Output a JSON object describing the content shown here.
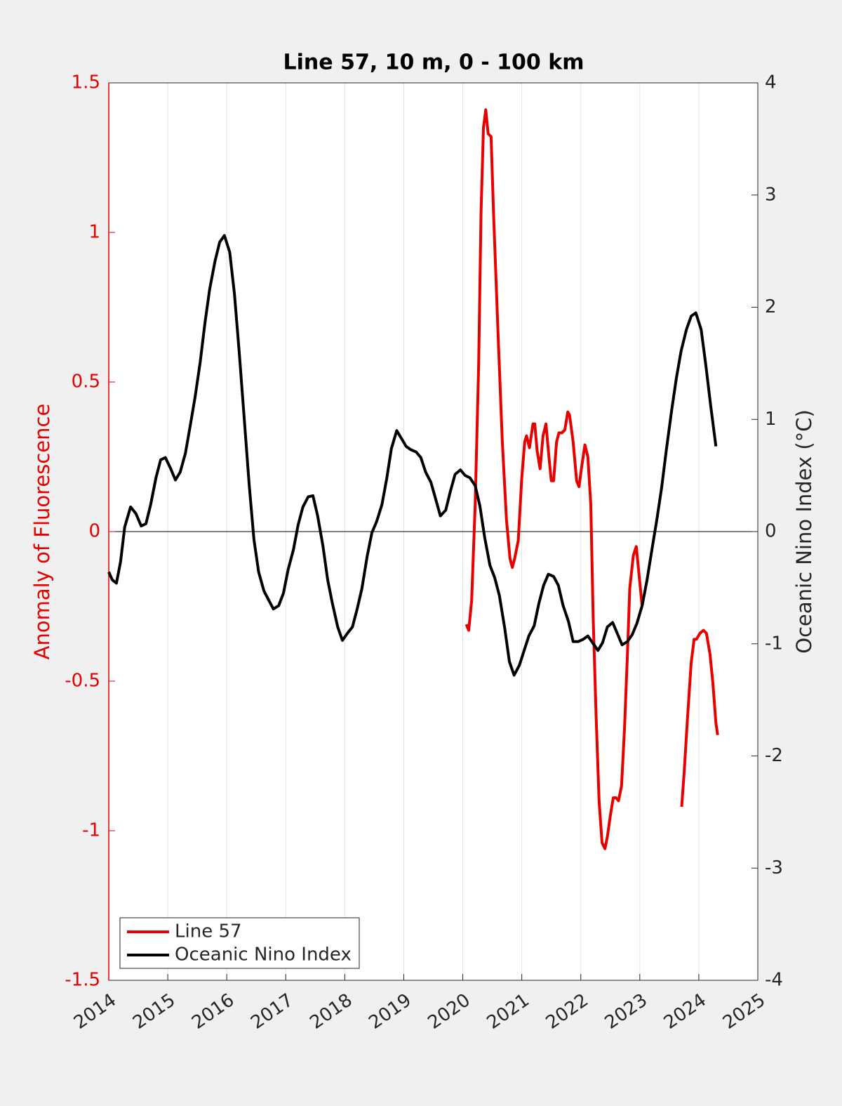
{
  "chart_data": {
    "type": "line",
    "title": "Line 57, 10 m, 0 - 100 km",
    "ylabel": "Anomaly of Fluorescence",
    "y2label": "Oceanic Nino Index (°C)",
    "xlim": [
      2014,
      2025
    ],
    "xticks": [
      2014,
      2015,
      2016,
      2017,
      2018,
      2019,
      2020,
      2021,
      2022,
      2023,
      2024,
      2025
    ],
    "ylim": [
      -1.5,
      1.5
    ],
    "yticks": [
      1.5,
      1,
      0.5,
      0,
      -0.5,
      -1,
      -1.5
    ],
    "y2lim": [
      -4,
      4
    ],
    "y2ticks": [
      4,
      3,
      2,
      1,
      0,
      -1,
      -2,
      -3,
      -4
    ],
    "grid": true,
    "legend": "lower left",
    "series": [
      {
        "name": "Line 57",
        "color": "#e60000",
        "x": [
          2020.06,
          2020.1,
          2020.15,
          2020.21,
          2020.27,
          2020.31,
          2020.35,
          2020.39,
          2020.43,
          2020.48,
          2020.52,
          2020.6,
          2020.67,
          2020.74,
          2020.8,
          2020.84,
          2020.88,
          2020.94,
          2021.0,
          2021.05,
          2021.08,
          2021.13,
          2021.19,
          2021.22,
          2021.26,
          2021.31,
          2021.36,
          2021.41,
          2021.46,
          2021.5,
          2021.54,
          2021.59,
          2021.63,
          2021.68,
          2021.73,
          2021.78,
          2021.81,
          2021.87,
          2021.93,
          2021.97,
          2022.01,
          2022.07,
          2022.12,
          2022.17,
          2022.21,
          2022.26,
          2022.31,
          2022.36,
          2022.41,
          2022.45,
          2022.5,
          2022.55,
          2022.6,
          2022.64,
          2022.69,
          2022.74,
          2022.79,
          2022.83,
          2022.89,
          2022.94,
          2022.99,
          2023.04,
          2023.4,
          2023.71,
          2023.75,
          2023.81,
          2023.87,
          2023.92,
          2023.96,
          2024.02,
          2024.08,
          2024.13,
          2024.19,
          2024.24,
          2024.29,
          2024.32
        ],
        "values": [
          -0.31,
          -0.33,
          -0.23,
          0.09,
          0.56,
          1.07,
          1.35,
          1.41,
          1.33,
          1.32,
          1.07,
          0.65,
          0.3,
          0.04,
          -0.09,
          -0.12,
          -0.09,
          -0.03,
          0.18,
          0.3,
          0.32,
          0.28,
          0.36,
          0.36,
          0.27,
          0.21,
          0.32,
          0.36,
          0.25,
          0.17,
          0.17,
          0.3,
          0.33,
          0.33,
          0.34,
          0.4,
          0.39,
          0.3,
          0.17,
          0.15,
          0.21,
          0.29,
          0.25,
          0.09,
          -0.29,
          -0.62,
          -0.9,
          -1.04,
          -1.06,
          -1.02,
          -0.95,
          -0.89,
          -0.89,
          -0.9,
          -0.85,
          -0.66,
          -0.41,
          -0.19,
          -0.08,
          -0.05,
          -0.15,
          -0.25,
          null,
          -0.92,
          -0.81,
          -0.62,
          -0.44,
          -0.36,
          -0.36,
          -0.34,
          -0.33,
          -0.34,
          -0.41,
          -0.51,
          -0.64,
          -0.68
        ]
      },
      {
        "name": "Oceanic Nino Index",
        "color": "#000000",
        "axis": "y2",
        "x": [
          2014.0,
          2014.06,
          2014.13,
          2014.2,
          2014.27,
          2014.37,
          2014.46,
          2014.55,
          2014.63,
          2014.71,
          2014.8,
          2014.88,
          2014.96,
          2015.05,
          2015.13,
          2015.21,
          2015.3,
          2015.38,
          2015.46,
          2015.55,
          2015.63,
          2015.71,
          2015.8,
          2015.88,
          2015.96,
          2016.05,
          2016.13,
          2016.21,
          2016.3,
          2016.38,
          2016.46,
          2016.54,
          2016.63,
          2016.71,
          2016.79,
          2016.88,
          2016.96,
          2017.04,
          2017.13,
          2017.21,
          2017.29,
          2017.38,
          2017.46,
          2017.54,
          2017.63,
          2017.71,
          2017.79,
          2017.88,
          2017.96,
          2018.04,
          2018.13,
          2018.21,
          2018.29,
          2018.38,
          2018.46,
          2018.54,
          2018.63,
          2018.71,
          2018.79,
          2018.88,
          2018.96,
          2019.04,
          2019.12,
          2019.21,
          2019.29,
          2019.37,
          2019.46,
          2019.54,
          2019.62,
          2019.71,
          2019.79,
          2019.87,
          2019.96,
          2020.04,
          2020.12,
          2020.21,
          2020.29,
          2020.37,
          2020.46,
          2020.54,
          2020.62,
          2020.71,
          2020.79,
          2020.87,
          2020.96,
          2021.04,
          2021.12,
          2021.21,
          2021.29,
          2021.37,
          2021.45,
          2021.54,
          2021.62,
          2021.7,
          2021.79,
          2021.87,
          2021.96,
          2022.04,
          2022.12,
          2022.2,
          2022.29,
          2022.37,
          2022.45,
          2022.54,
          2022.62,
          2022.7,
          2022.79,
          2022.87,
          2022.95,
          2023.04,
          2023.12,
          2023.2,
          2023.29,
          2023.37,
          2023.45,
          2023.54,
          2023.62,
          2023.7,
          2023.79,
          2023.87,
          2023.95,
          2024.04,
          2024.12,
          2024.2,
          2024.29
        ],
        "values": [
          -0.36,
          -0.43,
          -0.46,
          -0.27,
          0.04,
          0.22,
          0.16,
          0.05,
          0.07,
          0.24,
          0.48,
          0.64,
          0.66,
          0.56,
          0.46,
          0.53,
          0.7,
          0.94,
          1.19,
          1.51,
          1.86,
          2.16,
          2.41,
          2.58,
          2.64,
          2.49,
          2.12,
          1.61,
          0.98,
          0.42,
          -0.07,
          -0.36,
          -0.53,
          -0.61,
          -0.69,
          -0.66,
          -0.55,
          -0.34,
          -0.16,
          0.06,
          0.22,
          0.31,
          0.32,
          0.14,
          -0.13,
          -0.43,
          -0.64,
          -0.85,
          -0.97,
          -0.91,
          -0.85,
          -0.69,
          -0.51,
          -0.22,
          -0.01,
          0.09,
          0.24,
          0.47,
          0.74,
          0.9,
          0.83,
          0.76,
          0.73,
          0.71,
          0.66,
          0.53,
          0.44,
          0.29,
          0.14,
          0.19,
          0.36,
          0.51,
          0.55,
          0.5,
          0.48,
          0.41,
          0.23,
          -0.05,
          -0.3,
          -0.41,
          -0.57,
          -0.86,
          -1.16,
          -1.28,
          -1.19,
          -1.06,
          -0.93,
          -0.84,
          -0.64,
          -0.48,
          -0.38,
          -0.4,
          -0.48,
          -0.66,
          -0.8,
          -0.98,
          -0.98,
          -0.96,
          -0.93,
          -0.99,
          -1.06,
          -0.99,
          -0.85,
          -0.81,
          -0.91,
          -1.01,
          -0.98,
          -0.92,
          -0.82,
          -0.66,
          -0.44,
          -0.18,
          0.11,
          0.39,
          0.73,
          1.08,
          1.37,
          1.61,
          1.8,
          1.92,
          1.95,
          1.8,
          1.48,
          1.13,
          0.76
        ]
      }
    ]
  }
}
